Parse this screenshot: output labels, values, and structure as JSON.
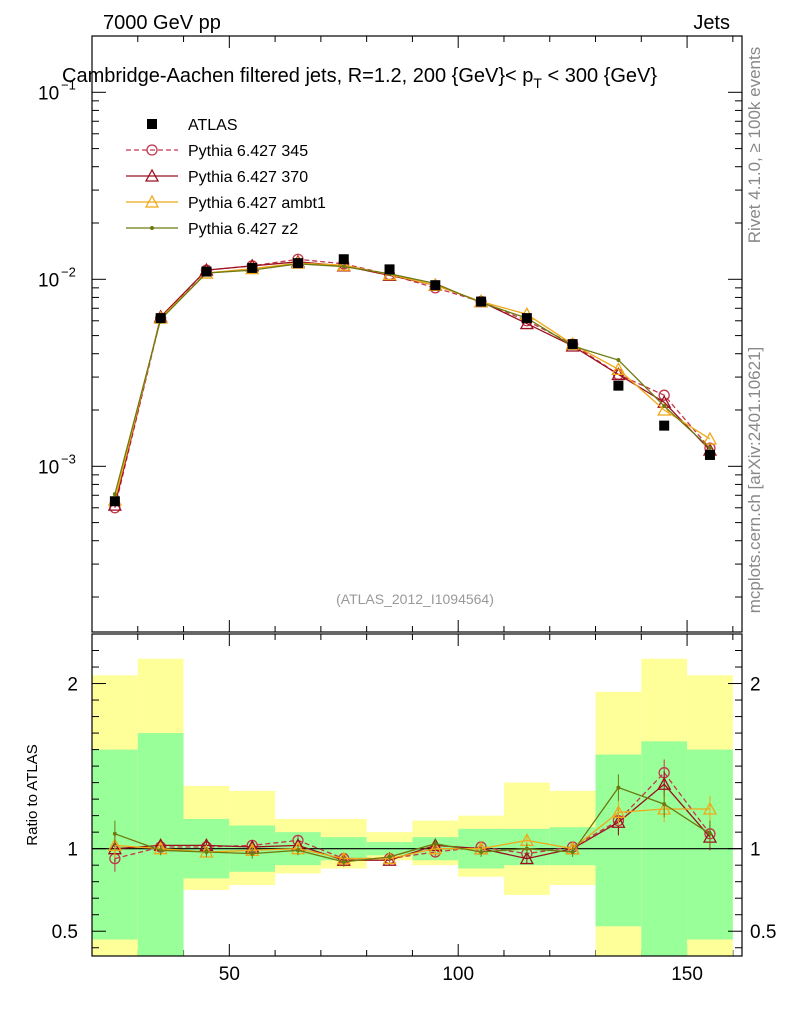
{
  "header": {
    "left": "7000 GeV pp",
    "right": "Jets"
  },
  "side": {
    "rivet": "Rivet 4.1.0, ≥ 100k events",
    "mcplots": "mcplots.cern.ch [arXiv:2401.10621]"
  },
  "chart_data": {
    "type": "line",
    "title_parts": [
      "Cambridge-Aachen filtered jets, R=1.2, 200 {GeV}< p",
      "T",
      " < 300 {GeV}"
    ],
    "watermark": "(ATLAS_2012_I1094564)",
    "x_range": [
      20,
      162
    ],
    "x_ticks": [
      50,
      100,
      150
    ],
    "x_tick_labels": [
      "50",
      "100",
      "150"
    ],
    "y_scale": "log",
    "y_range": [
      0.00013,
      0.2
    ],
    "y_ticks": [
      0.001,
      0.01,
      0.1
    ],
    "y_tick_labels": [
      "10",
      "10",
      "10"
    ],
    "y_tick_exponents": [
      "−3",
      "−2",
      "−1"
    ],
    "ratio": {
      "ylabel": "Ratio to ATLAS",
      "y_range": [
        0.35,
        2.3
      ],
      "y_ticks": [
        0.5,
        1,
        2
      ],
      "y_tick_labels": [
        "0.5",
        "1",
        "2"
      ]
    },
    "x": [
      25,
      35,
      45,
      55,
      65,
      75,
      85,
      95,
      105,
      115,
      125,
      135,
      145,
      155
    ],
    "atlas": {
      "name": "ATLAS",
      "values": [
        0.00065,
        0.0062,
        0.011,
        0.0115,
        0.0122,
        0.0128,
        0.0113,
        0.0093,
        0.0076,
        0.0062,
        0.0045,
        0.0027,
        0.00165,
        0.00115
      ],
      "band_green": [
        [
          0.45,
          1.6
        ],
        [
          0.35,
          1.7
        ],
        [
          0.82,
          1.18
        ],
        [
          0.86,
          1.14
        ],
        [
          0.9,
          1.1
        ],
        [
          0.93,
          1.07
        ],
        [
          0.96,
          1.04
        ],
        [
          0.93,
          1.07
        ],
        [
          0.88,
          1.12
        ],
        [
          0.9,
          1.12
        ],
        [
          0.9,
          1.13
        ],
        [
          0.53,
          1.57
        ],
        [
          0.35,
          1.65
        ],
        [
          0.45,
          1.6
        ]
      ],
      "band_yellow": [
        [
          0.2,
          2.05
        ],
        [
          0.15,
          2.15
        ],
        [
          0.75,
          1.38
        ],
        [
          0.78,
          1.35
        ],
        [
          0.85,
          1.18
        ],
        [
          0.88,
          1.18
        ],
        [
          0.93,
          1.1
        ],
        [
          0.9,
          1.17
        ],
        [
          0.83,
          1.2
        ],
        [
          0.72,
          1.4
        ],
        [
          0.78,
          1.35
        ],
        [
          0.2,
          1.95
        ],
        [
          0.2,
          2.15
        ],
        [
          0.2,
          2.05
        ]
      ]
    },
    "series": [
      {
        "name": "Pythia 6.427 345",
        "color": "#c2364b",
        "dashed": true,
        "marker": "circle",
        "values": [
          0.0006,
          0.0062,
          0.0112,
          0.0118,
          0.0128,
          0.0121,
          0.0106,
          0.009,
          0.0076,
          0.006,
          0.0045,
          0.0031,
          0.0024,
          0.00125
        ],
        "ratio": [
          0.94,
          1.01,
          1.01,
          1.02,
          1.05,
          0.94,
          0.94,
          0.98,
          1.01,
          0.97,
          1.01,
          1.17,
          1.46,
          1.09
        ]
      },
      {
        "name": "Pythia 6.427 370",
        "color": "#9b1020",
        "dashed": false,
        "marker": "triangle",
        "values": [
          0.00062,
          0.0063,
          0.0112,
          0.0118,
          0.0124,
          0.0118,
          0.0105,
          0.0093,
          0.0076,
          0.0058,
          0.0044,
          0.0031,
          0.0022,
          0.00122
        ],
        "ratio": [
          1.0,
          1.02,
          1.02,
          1.01,
          1.02,
          0.93,
          0.93,
          1.02,
          1.0,
          0.94,
          1.0,
          1.16,
          1.39,
          1.07
        ]
      },
      {
        "name": "Pythia 6.427 ambt1",
        "color": "#f0a818",
        "dashed": false,
        "marker": "triangle",
        "values": [
          0.00066,
          0.0062,
          0.0108,
          0.0114,
          0.0122,
          0.0119,
          0.0106,
          0.0093,
          0.0076,
          0.0065,
          0.0045,
          0.0033,
          0.002,
          0.0014
        ],
        "ratio": [
          1.02,
          1.0,
          0.98,
          0.99,
          1.0,
          0.94,
          0.94,
          1.0,
          1.0,
          1.05,
          1.0,
          1.22,
          1.24,
          1.24
        ]
      },
      {
        "name": "Pythia 6.427 z2",
        "color": "#6e7a10",
        "dashed": false,
        "marker": "dot",
        "values": [
          0.00071,
          0.0061,
          0.0108,
          0.0112,
          0.0121,
          0.0117,
          0.0107,
          0.0095,
          0.0075,
          0.0062,
          0.0044,
          0.0037,
          0.0021,
          0.00125
        ],
        "ratio": [
          1.09,
          0.99,
          0.98,
          0.97,
          0.99,
          0.92,
          0.95,
          1.03,
          0.98,
          1.0,
          0.98,
          1.37,
          1.27,
          1.09
        ]
      }
    ]
  }
}
